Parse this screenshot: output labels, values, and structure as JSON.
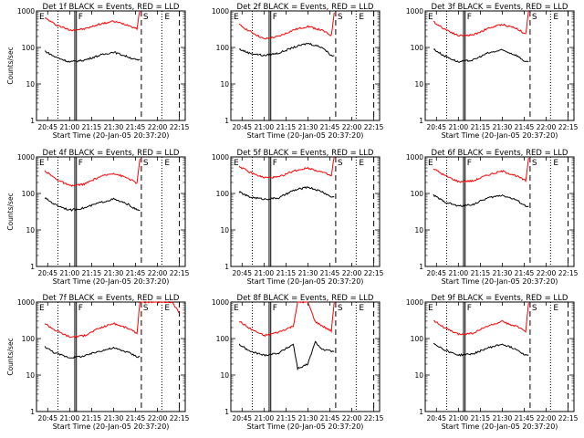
{
  "chart_data": [
    {
      "type": "line",
      "panel": "1f",
      "title": "Det 1f BLACK = Events, RED = LLD",
      "xlabel": "Start Time (20-Jan-05 20:37:20)",
      "ylabel": "Counts/sec",
      "yscale": "log",
      "ylim": [
        1,
        1000
      ],
      "ytick_labels": [
        "1",
        "10",
        "100",
        "1000"
      ],
      "xtick_labels": [
        "20:45",
        "21:00",
        "21:15",
        "21:30",
        "21:45",
        "22:00",
        "22:15"
      ],
      "markers": [
        "E",
        "F",
        "S",
        "E"
      ],
      "series": [
        {
          "color": "#ff0000",
          "x": [
            "20:43",
            "20:50",
            "21:00",
            "21:10",
            "21:20",
            "21:30",
            "21:40",
            "21:46",
            "21:48"
          ],
          "values": [
            650,
            430,
            300,
            320,
            430,
            520,
            410,
            330,
            1100
          ]
        },
        {
          "color": "#000000",
          "x": [
            "20:43",
            "20:50",
            "21:00",
            "21:10",
            "21:20",
            "21:30",
            "21:40",
            "21:46",
            "21:48"
          ],
          "values": [
            80,
            55,
            40,
            45,
            60,
            75,
            55,
            45,
            45
          ]
        }
      ]
    },
    {
      "type": "line",
      "panel": "2f",
      "title": "Det 2f BLACK = Events, RED = LLD",
      "xlabel": "Start Time (20-Jan-05 20:37:20)",
      "ylabel": "",
      "yscale": "log",
      "ylim": [
        1,
        1000
      ],
      "ytick_labels": [
        "1",
        "10",
        "100",
        "1000"
      ],
      "xtick_labels": [
        "20:45",
        "21:00",
        "21:15",
        "21:30",
        "21:45",
        "22:00",
        "22:15"
      ],
      "markers": [
        "E",
        "F",
        "S",
        "E"
      ],
      "series": [
        {
          "color": "#ff0000",
          "x": [
            "20:43",
            "20:50",
            "21:00",
            "21:10",
            "21:20",
            "21:30",
            "21:40",
            "21:46",
            "21:48"
          ],
          "values": [
            420,
            280,
            170,
            200,
            300,
            380,
            290,
            210,
            900
          ]
        },
        {
          "color": "#000000",
          "x": [
            "20:43",
            "20:50",
            "21:00",
            "21:10",
            "21:20",
            "21:30",
            "21:40",
            "21:46",
            "21:48"
          ],
          "values": [
            90,
            70,
            60,
            70,
            100,
            130,
            100,
            60,
            60
          ]
        }
      ]
    },
    {
      "type": "line",
      "panel": "3f",
      "title": "Det 3f BLACK = Events, RED = LLD",
      "xlabel": "Start Time (20-Jan-05 20:37:20)",
      "ylabel": "",
      "yscale": "log",
      "ylim": [
        1,
        1000
      ],
      "ytick_labels": [
        "1",
        "10",
        "100",
        "1000"
      ],
      "xtick_labels": [
        "20:45",
        "21:00",
        "21:15",
        "21:30",
        "21:45",
        "22:00",
        "22:15"
      ],
      "markers": [
        "E",
        "F",
        "S",
        "E"
      ],
      "series": [
        {
          "color": "#ff0000",
          "x": [
            "20:43",
            "20:50",
            "21:00",
            "21:10",
            "21:20",
            "21:30",
            "21:40",
            "21:46",
            "21:48"
          ],
          "values": [
            500,
            330,
            210,
            220,
            330,
            430,
            330,
            230,
            1000
          ]
        },
        {
          "color": "#000000",
          "x": [
            "20:43",
            "20:50",
            "21:00",
            "21:10",
            "21:20",
            "21:30",
            "21:40",
            "21:46",
            "21:48"
          ],
          "values": [
            90,
            60,
            40,
            45,
            70,
            85,
            60,
            40,
            40
          ]
        }
      ]
    },
    {
      "type": "line",
      "panel": "4f",
      "title": "Det 4f BLACK = Events, RED = LLD",
      "xlabel": "Start Time (20-Jan-05 20:37:20)",
      "ylabel": "Counts/sec",
      "yscale": "log",
      "ylim": [
        1,
        1000
      ],
      "ytick_labels": [
        "1",
        "10",
        "100",
        "1000"
      ],
      "xtick_labels": [
        "20:45",
        "21:00",
        "21:15",
        "21:30",
        "21:45",
        "22:00",
        "22:15"
      ],
      "markers": [
        "E",
        "F",
        "S",
        "E"
      ],
      "series": [
        {
          "color": "#ff0000",
          "x": [
            "20:43",
            "20:50",
            "21:00",
            "21:10",
            "21:20",
            "21:30",
            "21:40",
            "21:46",
            "21:48"
          ],
          "values": [
            420,
            260,
            160,
            180,
            280,
            360,
            260,
            190,
            900
          ]
        },
        {
          "color": "#000000",
          "x": [
            "20:43",
            "20:50",
            "21:00",
            "21:10",
            "21:20",
            "21:30",
            "21:40",
            "21:46",
            "21:48"
          ],
          "values": [
            75,
            50,
            35,
            40,
            55,
            70,
            50,
            35,
            35
          ]
        }
      ]
    },
    {
      "type": "line",
      "panel": "5f",
      "title": "Det 5f BLACK = Events, RED = LLD",
      "xlabel": "Start Time (20-Jan-05 20:37:20)",
      "ylabel": "",
      "yscale": "log",
      "ylim": [
        1,
        1000
      ],
      "ytick_labels": [
        "1",
        "10",
        "100",
        "1000"
      ],
      "xtick_labels": [
        "20:45",
        "21:00",
        "21:15",
        "21:30",
        "21:45",
        "22:00",
        "22:15"
      ],
      "markers": [
        "E",
        "F",
        "S",
        "E"
      ],
      "series": [
        {
          "color": "#ff0000",
          "x": [
            "20:43",
            "20:50",
            "21:00",
            "21:10",
            "21:20",
            "21:30",
            "21:40",
            "21:46",
            "21:48"
          ],
          "values": [
            560,
            380,
            270,
            280,
            410,
            500,
            380,
            300,
            1100
          ]
        },
        {
          "color": "#000000",
          "x": [
            "20:43",
            "20:50",
            "21:00",
            "21:10",
            "21:20",
            "21:30",
            "21:40",
            "21:46",
            "21:48"
          ],
          "values": [
            110,
            80,
            70,
            75,
            120,
            150,
            110,
            80,
            80
          ]
        }
      ]
    },
    {
      "type": "line",
      "panel": "6f",
      "title": "Det 6f BLACK = Events, RED = LLD",
      "xlabel": "Start Time (20-Jan-05 20:37:20)",
      "ylabel": "",
      "yscale": "log",
      "ylim": [
        1,
        1000
      ],
      "ytick_labels": [
        "1",
        "10",
        "100",
        "1000"
      ],
      "xtick_labels": [
        "20:45",
        "21:00",
        "21:15",
        "21:30",
        "21:45",
        "22:00",
        "22:15"
      ],
      "markers": [
        "E",
        "F",
        "S",
        "E"
      ],
      "series": [
        {
          "color": "#ff0000",
          "x": [
            "20:43",
            "20:50",
            "21:00",
            "21:10",
            "21:20",
            "21:30",
            "21:40",
            "21:46",
            "21:48"
          ],
          "values": [
            480,
            320,
            210,
            220,
            320,
            410,
            300,
            220,
            950
          ]
        },
        {
          "color": "#000000",
          "x": [
            "20:43",
            "20:50",
            "21:00",
            "21:10",
            "21:20",
            "21:30",
            "21:40",
            "21:46",
            "21:48"
          ],
          "values": [
            90,
            60,
            45,
            50,
            75,
            90,
            65,
            45,
            45
          ]
        }
      ]
    },
    {
      "type": "line",
      "panel": "7f",
      "title": "Det 7f BLACK = Events, RED = LLD",
      "xlabel": "Start Time (20-Jan-05 20:37:20)",
      "ylabel": "Counts/sec",
      "yscale": "log",
      "ylim": [
        1,
        1000
      ],
      "ytick_labels": [
        "1",
        "10",
        "100",
        "1000"
      ],
      "xtick_labels": [
        "20:45",
        "21:00",
        "21:15",
        "21:30",
        "21:45",
        "22:00",
        "22:15"
      ],
      "markers": [
        "E",
        "F",
        "S",
        "E"
      ],
      "series": [
        {
          "color": "#ff0000",
          "x": [
            "20:43",
            "20:50",
            "21:00",
            "21:10",
            "21:20",
            "21:30",
            "21:40",
            "21:46",
            "21:48",
            "22:10",
            "22:15"
          ],
          "values": [
            260,
            170,
            110,
            120,
            190,
            260,
            190,
            140,
            1000,
            1000,
            500
          ]
        },
        {
          "color": "#000000",
          "x": [
            "20:43",
            "20:50",
            "21:00",
            "21:10",
            "21:20",
            "21:30",
            "21:40",
            "21:46",
            "21:48"
          ],
          "values": [
            60,
            40,
            30,
            33,
            45,
            55,
            42,
            32,
            32
          ]
        }
      ]
    },
    {
      "type": "line",
      "panel": "8f",
      "title": "Det 8f BLACK = Events, RED = LLD",
      "xlabel": "Start Time (20-Jan-05 20:37:20)",
      "ylabel": "",
      "yscale": "log",
      "ylim": [
        1,
        1000
      ],
      "ytick_labels": [
        "1",
        "10",
        "100",
        "1000"
      ],
      "xtick_labels": [
        "20:45",
        "21:00",
        "21:15",
        "21:30",
        "21:45",
        "22:00",
        "22:15"
      ],
      "markers": [
        "E",
        "F",
        "S",
        "E"
      ],
      "series": [
        {
          "color": "#ff0000",
          "x": [
            "20:43",
            "20:50",
            "21:00",
            "21:10",
            "21:20",
            "21:23",
            "21:30",
            "21:35",
            "21:40",
            "21:46",
            "21:48"
          ],
          "values": [
            300,
            190,
            120,
            150,
            220,
            1000,
            1000,
            290,
            220,
            160,
            1000
          ]
        },
        {
          "color": "#000000",
          "x": [
            "20:43",
            "20:50",
            "21:00",
            "21:10",
            "21:20",
            "21:23",
            "21:30",
            "21:35",
            "21:40",
            "21:46",
            "21:48"
          ],
          "values": [
            70,
            45,
            35,
            40,
            70,
            15,
            20,
            80,
            50,
            45,
            45
          ]
        }
      ]
    },
    {
      "type": "line",
      "panel": "9f",
      "title": "Det 9f BLACK = Events, RED = LLD",
      "xlabel": "Start Time (20-Jan-05 20:37:20)",
      "ylabel": "",
      "yscale": "log",
      "ylim": [
        1,
        1000
      ],
      "ytick_labels": [
        "1",
        "10",
        "100",
        "1000"
      ],
      "xtick_labels": [
        "20:45",
        "21:00",
        "21:15",
        "21:30",
        "21:45",
        "22:00",
        "22:15"
      ],
      "markers": [
        "E",
        "F",
        "S",
        "E"
      ],
      "series": [
        {
          "color": "#ff0000",
          "x": [
            "20:43",
            "20:50",
            "21:00",
            "21:10",
            "21:20",
            "21:30",
            "21:40",
            "21:46",
            "21:48"
          ],
          "values": [
            320,
            200,
            130,
            140,
            220,
            290,
            210,
            160,
            950
          ]
        },
        {
          "color": "#000000",
          "x": [
            "20:43",
            "20:50",
            "21:00",
            "21:10",
            "21:20",
            "21:30",
            "21:40",
            "21:46",
            "21:48"
          ],
          "values": [
            75,
            50,
            35,
            38,
            55,
            70,
            50,
            35,
            35
          ]
        }
      ]
    }
  ]
}
